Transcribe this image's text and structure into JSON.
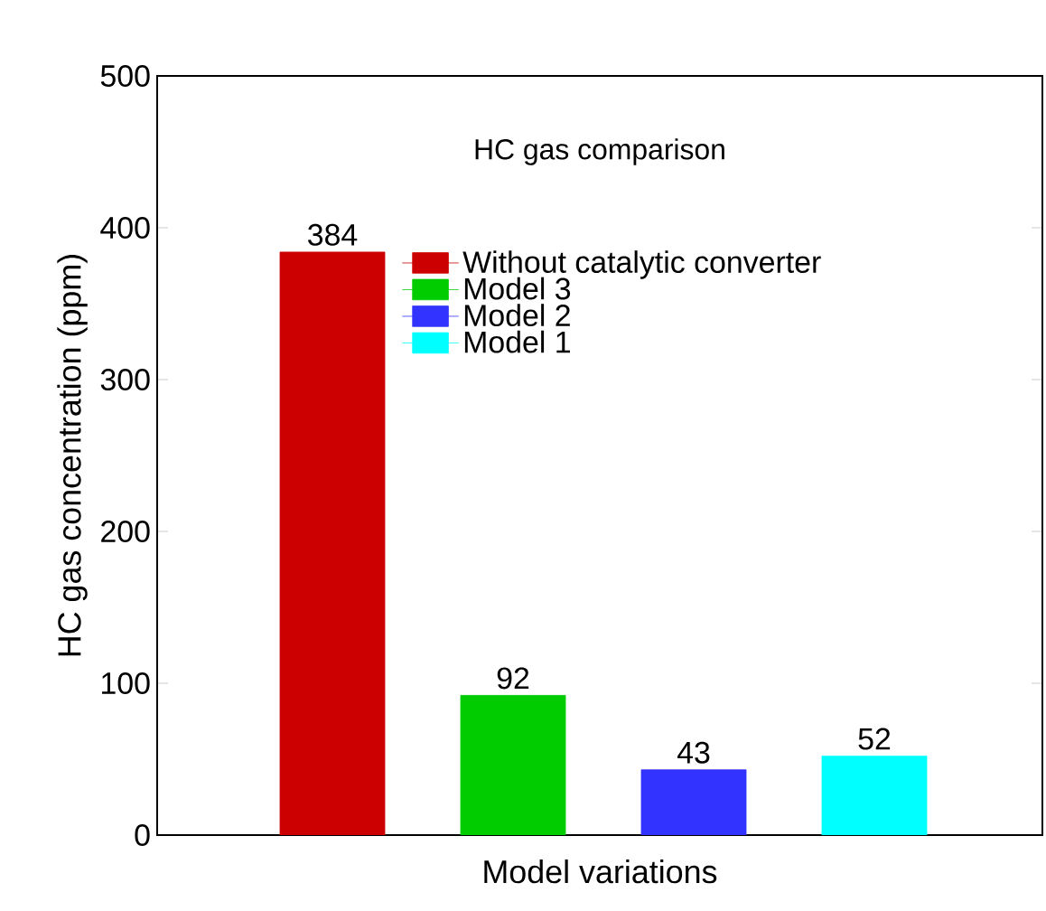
{
  "chart_data": {
    "type": "bar",
    "title": "HC gas comparison",
    "xlabel": "Model variations",
    "ylabel": "HC gas concentration (ppm)",
    "categories": [
      null,
      null,
      null,
      null
    ],
    "stacked": true,
    "series": [
      {
        "name": "Without catalytic converter",
        "color": "#cc0000",
        "values": [
          384,
          null,
          null,
          null
        ]
      },
      {
        "name": "Model 3",
        "color": "#00cc00",
        "values": [
          null,
          92,
          null,
          null
        ]
      },
      {
        "name": "Model 2",
        "color": "#3333ff",
        "values": [
          null,
          null,
          43,
          null
        ]
      },
      {
        "name": "Model 1",
        "color": "#00ffff",
        "values": [
          null,
          null,
          null,
          52
        ]
      }
    ],
    "ylim": [
      0,
      500
    ],
    "yticks": [
      0,
      100,
      200,
      300,
      400,
      500
    ],
    "tick_labels": "y",
    "data_labels": true,
    "legend": "top right"
  }
}
